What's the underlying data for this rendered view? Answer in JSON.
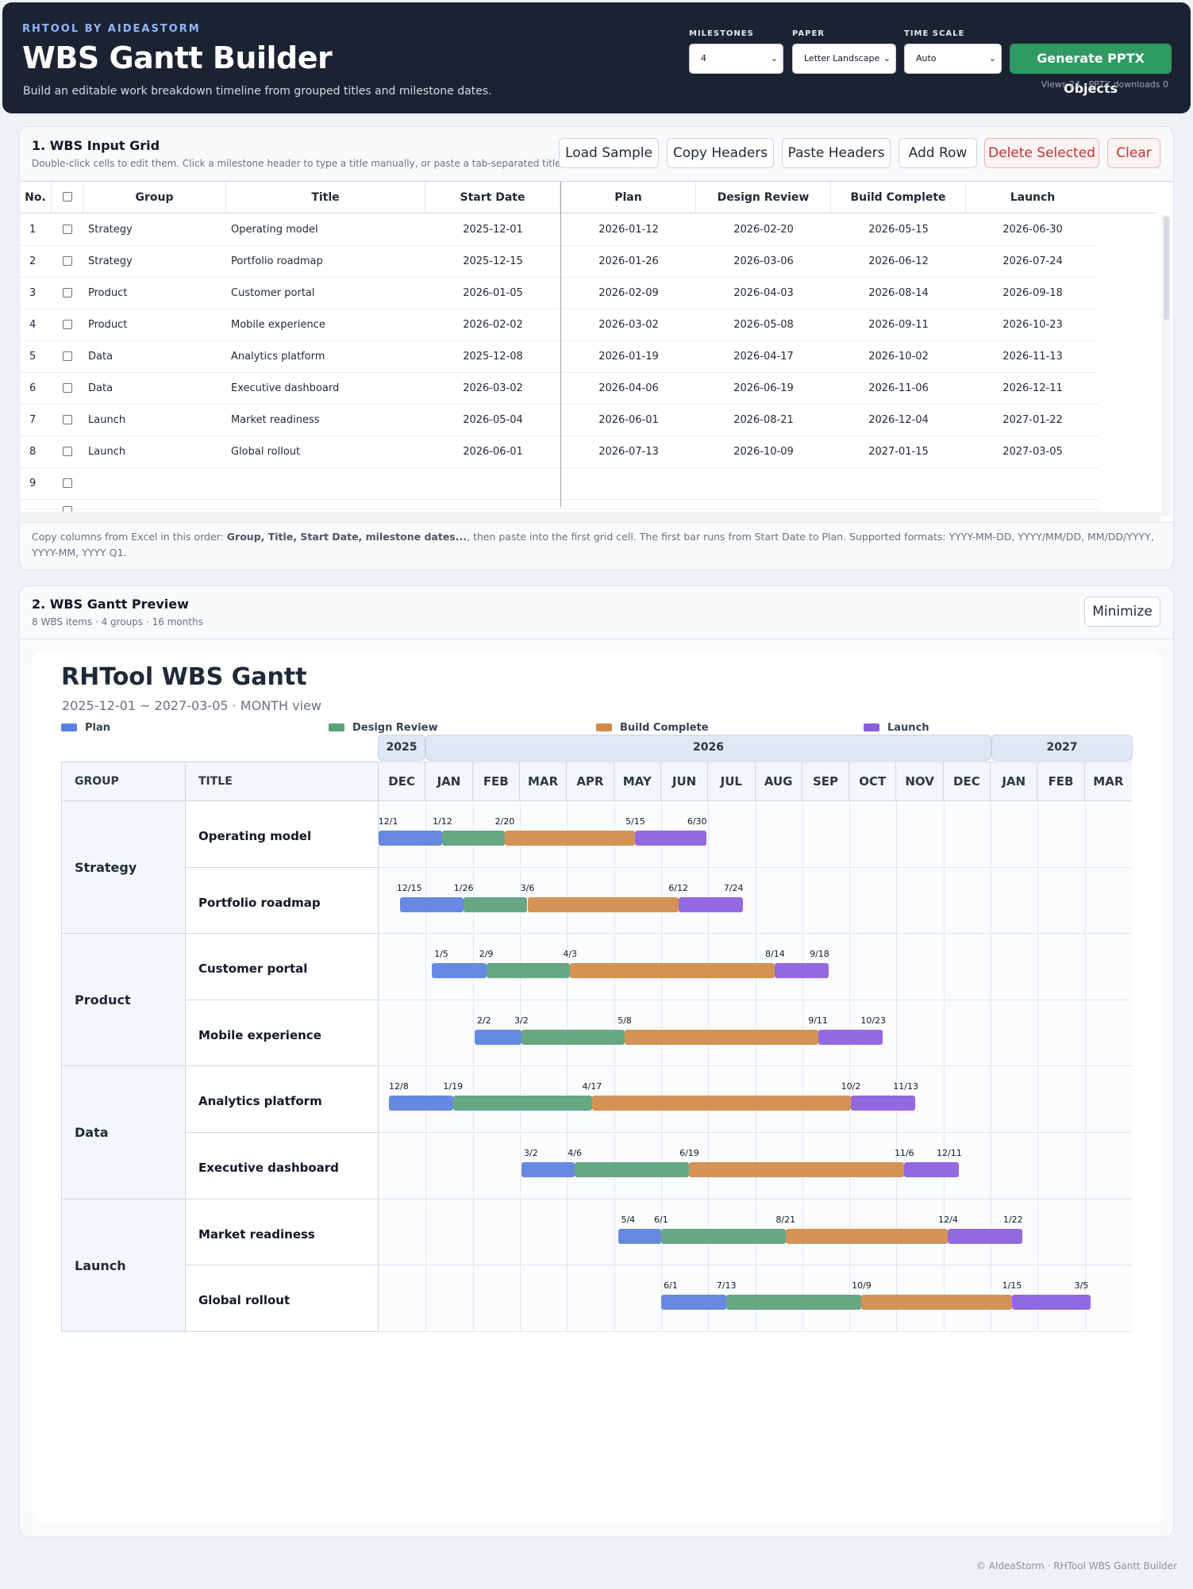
{
  "header": {
    "brand": "RHTOOL BY AIDEASTORM",
    "title": "WBS Gantt Builder",
    "subtitle": "Build an editable work breakdown timeline from grouped titles and milestone dates.",
    "milestones_label": "MILESTONES",
    "milestones_value": "4",
    "paper_label": "PAPER",
    "paper_value": "Letter Landscape",
    "timescale_label": "TIME SCALE",
    "timescale_value": "Auto",
    "generate_label": "Generate PPTX Objects",
    "stats": "Views 24  ·  PPTX downloads 0"
  },
  "input": {
    "title": "1. WBS Input Grid",
    "subtitle": "Double-click cells to edit them. Click a milestone header to type a title manually, or paste a tab-separated title row.",
    "buttons": {
      "load": "Load Sample",
      "copy": "Copy Headers",
      "paste": "Paste Headers",
      "add": "Add Row",
      "delete": "Delete Selected",
      "clear": "Clear"
    },
    "columns": {
      "no": "No.",
      "group": "Group",
      "title": "Title",
      "start": "Start Date",
      "m1": "Plan",
      "m2": "Design Review",
      "m3": "Build Complete",
      "m4": "Launch"
    },
    "rows": [
      {
        "no": "1",
        "group": "Strategy",
        "title": "Operating model",
        "start": "2025-12-01",
        "m1": "2026-01-12",
        "m2": "2026-02-20",
        "m3": "2026-05-15",
        "m4": "2026-06-30"
      },
      {
        "no": "2",
        "group": "Strategy",
        "title": "Portfolio roadmap",
        "start": "2025-12-15",
        "m1": "2026-01-26",
        "m2": "2026-03-06",
        "m3": "2026-06-12",
        "m4": "2026-07-24"
      },
      {
        "no": "3",
        "group": "Product",
        "title": "Customer portal",
        "start": "2026-01-05",
        "m1": "2026-02-09",
        "m2": "2026-04-03",
        "m3": "2026-08-14",
        "m4": "2026-09-18"
      },
      {
        "no": "4",
        "group": "Product",
        "title": "Mobile experience",
        "start": "2026-02-02",
        "m1": "2026-03-02",
        "m2": "2026-05-08",
        "m3": "2026-09-11",
        "m4": "2026-10-23"
      },
      {
        "no": "5",
        "group": "Data",
        "title": "Analytics platform",
        "start": "2025-12-08",
        "m1": "2026-01-19",
        "m2": "2026-04-17",
        "m3": "2026-10-02",
        "m4": "2026-11-13"
      },
      {
        "no": "6",
        "group": "Data",
        "title": "Executive dashboard",
        "start": "2026-03-02",
        "m1": "2026-04-06",
        "m2": "2026-06-19",
        "m3": "2026-11-06",
        "m4": "2026-12-11"
      },
      {
        "no": "7",
        "group": "Launch",
        "title": "Market readiness",
        "start": "2026-05-04",
        "m1": "2026-06-01",
        "m2": "2026-08-21",
        "m3": "2026-12-04",
        "m4": "2027-01-22"
      },
      {
        "no": "8",
        "group": "Launch",
        "title": "Global rollout",
        "start": "2026-06-01",
        "m1": "2026-07-13",
        "m2": "2026-10-09",
        "m3": "2027-01-15",
        "m4": "2027-03-05"
      },
      {
        "no": "9",
        "group": "",
        "title": "",
        "start": "",
        "m1": "",
        "m2": "",
        "m3": "",
        "m4": ""
      }
    ],
    "hint_pre": "Copy columns from Excel in this order: ",
    "hint_bold": "Group, Title, Start Date, milestone dates...",
    "hint_post": ", then paste into the first grid cell. The first bar runs from Start Date to Plan. Supported formats: YYYY-MM-DD, YYYY/MM/DD, MM/DD/YYYY, YYYY-MM, YYYY Q1."
  },
  "preview": {
    "title": "2. WBS Gantt Preview",
    "subtitle": "8 WBS items · 4 groups · 16 months",
    "minimize_label": "Minimize",
    "gantt_title": "RHTool WBS Gantt",
    "gantt_range": "2025-12-01 ~ 2027-03-05 · MONTH view",
    "legend": [
      {
        "label": "Plan",
        "color": "#5b7fe0"
      },
      {
        "label": "Design Review",
        "color": "#5aa07a"
      },
      {
        "label": "Build Complete",
        "color": "#d08a45"
      },
      {
        "label": "Launch",
        "color": "#8a5ce0"
      }
    ],
    "years": [
      "2025",
      "2026",
      "2027"
    ],
    "col_group": "GROUP",
    "col_title": "TITLE",
    "months": [
      "DEC",
      "JAN",
      "FEB",
      "MAR",
      "APR",
      "MAY",
      "JUN",
      "JUL",
      "AUG",
      "SEP",
      "OCT",
      "NOV",
      "DEC",
      "JAN",
      "FEB",
      "MAR"
    ],
    "groups": [
      {
        "name": "Strategy",
        "items": [
          "Operating model",
          "Portfolio roadmap"
        ]
      },
      {
        "name": "Product",
        "items": [
          "Customer portal",
          "Mobile experience"
        ]
      },
      {
        "name": "Data",
        "items": [
          "Analytics platform",
          "Executive dashboard"
        ]
      },
      {
        "name": "Launch",
        "items": [
          "Market readiness",
          "Global rollout"
        ]
      }
    ],
    "tasks": [
      {
        "start": "2025-12-01",
        "ms": [
          "2026-01-12",
          "2026-02-20",
          "2026-05-15",
          "2026-06-30"
        ],
        "labels": [
          "12/1",
          "1/12",
          "2/20",
          "5/15",
          "6/30"
        ]
      },
      {
        "start": "2025-12-15",
        "ms": [
          "2026-01-26",
          "2026-03-06",
          "2026-06-12",
          "2026-07-24"
        ],
        "labels": [
          "12/15",
          "1/26",
          "3/6",
          "6/12",
          "7/24"
        ]
      },
      {
        "start": "2026-01-05",
        "ms": [
          "2026-02-09",
          "2026-04-03",
          "2026-08-14",
          "2026-09-18"
        ],
        "labels": [
          "1/5",
          "2/9",
          "4/3",
          "8/14",
          "9/18"
        ]
      },
      {
        "start": "2026-02-02",
        "ms": [
          "2026-03-02",
          "2026-05-08",
          "2026-09-11",
          "2026-10-23"
        ],
        "labels": [
          "2/2",
          "3/2",
          "5/8",
          "9/11",
          "10/23"
        ]
      },
      {
        "start": "2025-12-08",
        "ms": [
          "2026-01-19",
          "2026-04-17",
          "2026-10-02",
          "2026-11-13"
        ],
        "labels": [
          "12/8",
          "1/19",
          "4/17",
          "10/2",
          "11/13"
        ]
      },
      {
        "start": "2026-03-02",
        "ms": [
          "2026-04-06",
          "2026-06-19",
          "2026-11-06",
          "2026-12-11"
        ],
        "labels": [
          "3/2",
          "4/6",
          "6/19",
          "11/6",
          "12/11"
        ]
      },
      {
        "start": "2026-05-04",
        "ms": [
          "2026-06-01",
          "2026-08-21",
          "2026-12-04",
          "2027-01-22"
        ],
        "labels": [
          "5/4",
          "6/1",
          "8/21",
          "12/4",
          "1/22"
        ]
      },
      {
        "start": "2026-06-01",
        "ms": [
          "2026-07-13",
          "2026-10-09",
          "2027-01-15",
          "2027-03-05"
        ],
        "labels": [
          "6/1",
          "7/13",
          "10/9",
          "1/15",
          "3/5"
        ]
      }
    ]
  },
  "footer": "© AIdeaStorm · RHTool WBS Gantt Builder"
}
